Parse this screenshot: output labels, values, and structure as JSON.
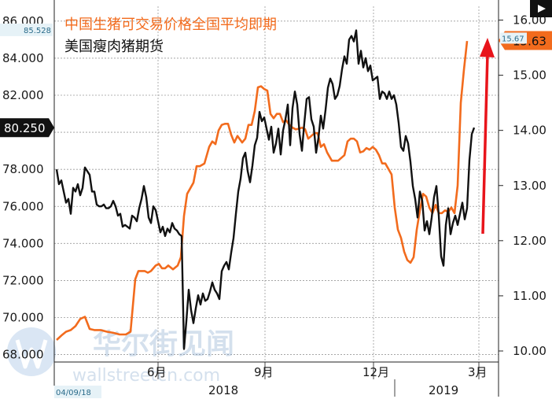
{
  "watermark": {
    "cn": "华尔街见闻",
    "url": "wallstreetcn.com"
  },
  "chart_data": {
    "type": "line",
    "legend": [
      "中国生猪可交易价格全国平均即期",
      "美国瘦肉猪期货"
    ],
    "colors": {
      "china": "#f26b1d",
      "us": "#111111",
      "arrow": "#e8141b",
      "grid": "#9a9a9a"
    },
    "x_labels": {
      "months": [
        "6月",
        "9月",
        "12月",
        "3月"
      ],
      "years": [
        "2018",
        "2019"
      ],
      "start_date": "04/09/18"
    },
    "left_axis": {
      "ticks": [
        "68.000",
        "70.000",
        "72.000",
        "74.000",
        "76.000",
        "78.000",
        "80.000",
        "82.000",
        "84.000",
        "86.000"
      ],
      "ylim": [
        67.6,
        86.8
      ]
    },
    "right_axis": {
      "ticks": [
        "10.00",
        "11.00",
        "12.00",
        "13.00",
        "14.00",
        "15.00",
        "16.00"
      ],
      "ylim": [
        9.8,
        16.25
      ]
    },
    "tags": {
      "left_top": "85.528",
      "left_current": "80.250",
      "right_current": "15.63",
      "right_prev": "15.67"
    },
    "series": [
      {
        "name": "中国生猪可交易价格全国平均即期",
        "axis": "right",
        "points": [
          [
            0,
            10.2
          ],
          [
            6,
            10.28
          ],
          [
            12,
            10.35
          ],
          [
            18,
            10.38
          ],
          [
            24,
            10.45
          ],
          [
            30,
            10.58
          ],
          [
            36,
            10.62
          ],
          [
            42,
            10.4
          ],
          [
            48,
            10.38
          ],
          [
            56,
            10.38
          ],
          [
            64,
            10.35
          ],
          [
            72,
            10.33
          ],
          [
            80,
            10.3
          ],
          [
            88,
            10.3
          ],
          [
            94,
            10.35
          ],
          [
            100,
            11.3
          ],
          [
            104,
            11.45
          ],
          [
            108,
            11.45
          ],
          [
            112,
            11.45
          ],
          [
            116,
            11.42
          ],
          [
            120,
            11.45
          ],
          [
            126,
            11.55
          ],
          [
            130,
            11.58
          ],
          [
            134,
            11.5
          ],
          [
            138,
            11.5
          ],
          [
            142,
            11.55
          ],
          [
            148,
            11.48
          ],
          [
            154,
            11.55
          ],
          [
            158,
            11.7
          ],
          [
            162,
            12.45
          ],
          [
            166,
            12.85
          ],
          [
            170,
            12.95
          ],
          [
            174,
            13.05
          ],
          [
            178,
            13.35
          ],
          [
            182,
            13.35
          ],
          [
            188,
            13.4
          ],
          [
            194,
            13.7
          ],
          [
            198,
            13.8
          ],
          [
            202,
            13.75
          ],
          [
            206,
            14.0
          ],
          [
            210,
            14.1
          ],
          [
            214,
            14.12
          ],
          [
            218,
            14.12
          ],
          [
            222,
            13.92
          ],
          [
            226,
            13.78
          ],
          [
            230,
            13.9
          ],
          [
            236,
            13.78
          ],
          [
            240,
            13.85
          ],
          [
            244,
            14.1
          ],
          [
            248,
            14.1
          ],
          [
            252,
            14.35
          ],
          [
            256,
            14.78
          ],
          [
            260,
            14.8
          ],
          [
            264,
            14.75
          ],
          [
            268,
            14.72
          ],
          [
            272,
            14.3
          ],
          [
            276,
            14.22
          ],
          [
            280,
            14.3
          ],
          [
            284,
            14.3
          ],
          [
            288,
            14.15
          ],
          [
            292,
            14.18
          ],
          [
            296,
            14.1
          ],
          [
            300,
            14.05
          ],
          [
            304,
            14.02
          ],
          [
            308,
            14.03
          ],
          [
            312,
            14.05
          ],
          [
            316,
            14.02
          ],
          [
            320,
            13.85
          ],
          [
            324,
            13.9
          ],
          [
            328,
            13.95
          ],
          [
            332,
            13.95
          ],
          [
            336,
            13.7
          ],
          [
            340,
            13.75
          ],
          [
            344,
            13.6
          ],
          [
            350,
            13.45
          ],
          [
            354,
            13.45
          ],
          [
            358,
            13.45
          ],
          [
            362,
            13.5
          ],
          [
            366,
            13.55
          ],
          [
            370,
            13.8
          ],
          [
            374,
            13.85
          ],
          [
            378,
            13.85
          ],
          [
            382,
            13.8
          ],
          [
            386,
            13.6
          ],
          [
            390,
            13.62
          ],
          [
            394,
            13.68
          ],
          [
            398,
            13.65
          ],
          [
            402,
            13.7
          ],
          [
            406,
            13.65
          ],
          [
            410,
            13.55
          ],
          [
            414,
            13.4
          ],
          [
            418,
            13.4
          ],
          [
            422,
            13.3
          ],
          [
            426,
            13.2
          ],
          [
            430,
            12.6
          ],
          [
            434,
            12.2
          ],
          [
            438,
            12.05
          ],
          [
            442,
            11.8
          ],
          [
            446,
            11.65
          ],
          [
            450,
            11.6
          ],
          [
            454,
            11.7
          ],
          [
            458,
            12.2
          ],
          [
            462,
            12.55
          ],
          [
            466,
            12.85
          ],
          [
            470,
            12.8
          ],
          [
            474,
            12.6
          ],
          [
            478,
            12.5
          ],
          [
            482,
            12.65
          ],
          [
            486,
            12.5
          ],
          [
            490,
            12.5
          ],
          [
            494,
            12.55
          ],
          [
            498,
            12.52
          ],
          [
            502,
            12.6
          ],
          [
            506,
            12.5
          ],
          [
            510,
            13.0
          ],
          [
            514,
            14.5
          ],
          [
            518,
            15.1
          ],
          [
            522,
            15.62
          ]
        ]
      },
      {
        "name": "美国瘦肉猪期货",
        "axis": "left",
        "points": [
          [
            0,
            78.0
          ],
          [
            3,
            77.2
          ],
          [
            6,
            77.4
          ],
          [
            9,
            76.8
          ],
          [
            12,
            76.2
          ],
          [
            15,
            76.4
          ],
          [
            18,
            75.6
          ],
          [
            21,
            77.0
          ],
          [
            24,
            76.8
          ],
          [
            27,
            77.2
          ],
          [
            30,
            76.6
          ],
          [
            33,
            77.0
          ],
          [
            36,
            78.1
          ],
          [
            39,
            77.9
          ],
          [
            42,
            77.7
          ],
          [
            45,
            76.8
          ],
          [
            48,
            76.8
          ],
          [
            51,
            76.1
          ],
          [
            54,
            76.0
          ],
          [
            57,
            76.0
          ],
          [
            60,
            76.1
          ],
          [
            63,
            75.9
          ],
          [
            66,
            75.9
          ],
          [
            69,
            76.0
          ],
          [
            72,
            76.3
          ],
          [
            75,
            76.0
          ],
          [
            78,
            75.5
          ],
          [
            81,
            75.6
          ],
          [
            84,
            74.9
          ],
          [
            87,
            75.0
          ],
          [
            90,
            74.9
          ],
          [
            93,
            74.8
          ],
          [
            96,
            75.5
          ],
          [
            99,
            75.4
          ],
          [
            102,
            75.2
          ],
          [
            105,
            75.9
          ],
          [
            108,
            76.4
          ],
          [
            111,
            77.1
          ],
          [
            114,
            76.5
          ],
          [
            117,
            75.4
          ],
          [
            120,
            75.1
          ],
          [
            123,
            76.0
          ],
          [
            126,
            75.8
          ],
          [
            129,
            75.2
          ],
          [
            132,
            74.6
          ],
          [
            135,
            74.9
          ],
          [
            138,
            74.4
          ],
          [
            141,
            74.8
          ],
          [
            144,
            74.6
          ],
          [
            147,
            75.1
          ],
          [
            150,
            74.8
          ],
          [
            153,
            74.7
          ],
          [
            156,
            74.5
          ],
          [
            159,
            74.4
          ],
          [
            162,
            68.3
          ],
          [
            165,
            69.8
          ],
          [
            168,
            71.5
          ],
          [
            171,
            70.4
          ],
          [
            174,
            69.7
          ],
          [
            177,
            70.5
          ],
          [
            180,
            71.2
          ],
          [
            183,
            70.7
          ],
          [
            186,
            71.3
          ],
          [
            189,
            70.9
          ],
          [
            192,
            71.0
          ],
          [
            195,
            71.4
          ],
          [
            198,
            71.9
          ],
          [
            201,
            71.5
          ],
          [
            204,
            71.3
          ],
          [
            207,
            71.0
          ],
          [
            210,
            72.5
          ],
          [
            213,
            72.8
          ],
          [
            216,
            73.0
          ],
          [
            219,
            72.6
          ],
          [
            222,
            73.5
          ],
          [
            225,
            74.3
          ],
          [
            228,
            75.6
          ],
          [
            231,
            76.8
          ],
          [
            234,
            77.5
          ],
          [
            237,
            78.6
          ],
          [
            240,
            78.9
          ],
          [
            243,
            77.9
          ],
          [
            246,
            77.3
          ],
          [
            249,
            78.2
          ],
          [
            252,
            79.3
          ],
          [
            255,
            79.7
          ],
          [
            258,
            81.1
          ],
          [
            261,
            80.6
          ],
          [
            264,
            80.8
          ],
          [
            267,
            80.2
          ],
          [
            270,
            79.6
          ],
          [
            273,
            80.3
          ],
          [
            276,
            78.9
          ],
          [
            279,
            79.4
          ],
          [
            282,
            80.2
          ],
          [
            285,
            78.8
          ],
          [
            288,
            80.1
          ],
          [
            291,
            80.7
          ],
          [
            294,
            81.5
          ],
          [
            297,
            79.3
          ],
          [
            300,
            81.3
          ],
          [
            303,
            82.2
          ],
          [
            306,
            81.5
          ],
          [
            309,
            79.9
          ],
          [
            312,
            79.0
          ],
          [
            315,
            80.5
          ],
          [
            318,
            81.8
          ],
          [
            321,
            81.9
          ],
          [
            324,
            80.7
          ],
          [
            327,
            80.3
          ],
          [
            330,
            78.9
          ],
          [
            333,
            79.7
          ],
          [
            336,
            80.9
          ],
          [
            339,
            80.2
          ],
          [
            342,
            81.2
          ],
          [
            345,
            82.4
          ],
          [
            348,
            82.9
          ],
          [
            351,
            82.6
          ],
          [
            354,
            81.8
          ],
          [
            357,
            82.0
          ],
          [
            360,
            82.5
          ],
          [
            363,
            83.4
          ],
          [
            366,
            84.1
          ],
          [
            369,
            83.7
          ],
          [
            372,
            85.0
          ],
          [
            375,
            85.2
          ],
          [
            378,
            84.9
          ],
          [
            381,
            85.5
          ],
          [
            384,
            83.7
          ],
          [
            387,
            84.4
          ],
          [
            390,
            83.5
          ],
          [
            393,
            84.0
          ],
          [
            396,
            83.3
          ],
          [
            399,
            83.6
          ],
          [
            402,
            82.8
          ],
          [
            405,
            82.9
          ],
          [
            408,
            83.0
          ],
          [
            411,
            81.8
          ],
          [
            414,
            82.2
          ],
          [
            417,
            82.1
          ],
          [
            420,
            81.8
          ],
          [
            423,
            82.2
          ],
          [
            426,
            81.8
          ],
          [
            429,
            82.0
          ],
          [
            432,
            81.5
          ],
          [
            435,
            80.5
          ],
          [
            438,
            79.2
          ],
          [
            441,
            79.0
          ],
          [
            444,
            79.8
          ],
          [
            447,
            79.4
          ],
          [
            450,
            78.4
          ],
          [
            453,
            77.1
          ],
          [
            456,
            76.4
          ],
          [
            459,
            75.4
          ],
          [
            462,
            76.8
          ],
          [
            465,
            76.3
          ],
          [
            468,
            74.7
          ],
          [
            471,
            75.2
          ],
          [
            474,
            74.5
          ],
          [
            477,
            75.4
          ],
          [
            480,
            76.5
          ],
          [
            483,
            77.1
          ],
          [
            486,
            75.5
          ],
          [
            489,
            73.3
          ],
          [
            492,
            72.8
          ],
          [
            495,
            75.0
          ],
          [
            498,
            75.9
          ],
          [
            501,
            74.5
          ],
          [
            504,
            75.1
          ],
          [
            507,
            75.5
          ],
          [
            510,
            75.0
          ],
          [
            513,
            75.6
          ],
          [
            516,
            76.2
          ],
          [
            519,
            75.3
          ],
          [
            522,
            75.9
          ],
          [
            525,
            78.5
          ],
          [
            528,
            79.9
          ],
          [
            531,
            80.25
          ]
        ]
      }
    ]
  }
}
